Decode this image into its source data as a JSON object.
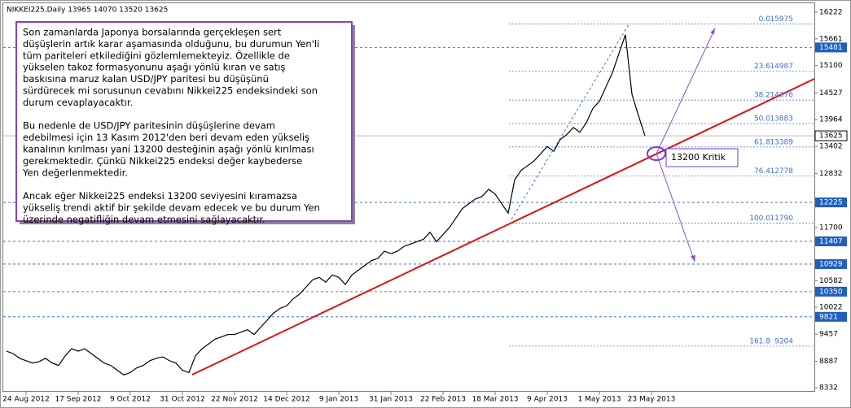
{
  "chart_data": {
    "type": "line",
    "title": "NIKKEI225,Daily  13965 14070 13520 13625",
    "color": "#000000",
    "categories": [
      null,
      null,
      null,
      "24 Aug 2012",
      null,
      null,
      null,
      null,
      null,
      null,
      null,
      "17 Sep 2012",
      null,
      null,
      null,
      null,
      null,
      null,
      null,
      "9 Oct 2012",
      null,
      null,
      null,
      null,
      null,
      null,
      null,
      "31 Oct 2012",
      null,
      null,
      null,
      null,
      null,
      null,
      null,
      "22 Nov 2012",
      null,
      null,
      null,
      null,
      null,
      null,
      null,
      "14 Dec 2012",
      null,
      null,
      null,
      null,
      null,
      null,
      null,
      "9 Jan 2013",
      null,
      null,
      null,
      null,
      null,
      null,
      null,
      "31 Jan 2013",
      null,
      null,
      null,
      null,
      null,
      null,
      null,
      "22 Feb 2013",
      null,
      null,
      null,
      null,
      null,
      null,
      null,
      "18 Mar 2013",
      null,
      null,
      null,
      null,
      null,
      null,
      null,
      "9 Apr 2013",
      null,
      null,
      null,
      null,
      null,
      null,
      null,
      "1 May 2013",
      null,
      null,
      null,
      null,
      null,
      null,
      null,
      "23 May 2013"
    ],
    "values": [
      9100,
      9050,
      8950,
      8900,
      8850,
      8880,
      8950,
      8850,
      8800,
      9000,
      9150,
      9100,
      9150,
      9050,
      8950,
      8850,
      8800,
      8700,
      8600,
      8650,
      8750,
      8800,
      8900,
      8950,
      8980,
      8900,
      8850,
      8700,
      8650,
      9000,
      9150,
      9250,
      9350,
      9400,
      9450,
      9450,
      9500,
      9550,
      9450,
      9600,
      9750,
      9900,
      10000,
      10050,
      10200,
      10300,
      10450,
      10600,
      10650,
      10550,
      10700,
      10650,
      10500,
      10700,
      10800,
      10900,
      11000,
      11050,
      11200,
      11150,
      11200,
      11300,
      11350,
      11400,
      11450,
      11600,
      11400,
      11550,
      11700,
      11900,
      12100,
      12200,
      12300,
      12350,
      12500,
      12400,
      12200,
      12000,
      12700,
      12900,
      13000,
      13100,
      13250,
      13400,
      13300,
      13550,
      13650,
      13800,
      13700,
      13900,
      14200,
      14350,
      14650,
      14950,
      15350,
      15750,
      14500,
      14050,
      13625,
      null
    ],
    "ylim": [
      8247,
      16393
    ],
    "yticks": [
      16222,
      15661,
      15100,
      14527,
      13964,
      13402,
      12832,
      11700,
      10582,
      10022,
      9457,
      8887,
      8332
    ],
    "levels": [
      {
        "price": 15481,
        "color": "#1f5fbf"
      },
      {
        "price": 12225,
        "color": "#1f5fbf"
      },
      {
        "price": 11407,
        "color": "#1f5fbf"
      },
      {
        "price": 10929,
        "color": "#1f5fbf"
      },
      {
        "price": 10350,
        "color": "#1f5fbf"
      },
      {
        "price": 9821,
        "color": "#1f5fbf"
      }
    ],
    "current_price": 13625,
    "fib_levels": [
      {
        "level": "0.0",
        "price": 15975
      },
      {
        "level": "23.6",
        "price": 14987
      },
      {
        "level": "38.2",
        "price": 14376
      },
      {
        "level": "50.0",
        "price": 13883
      },
      {
        "level": "61.8",
        "price": 13389
      },
      {
        "level": "76.4",
        "price": 12778
      },
      {
        "level": "100.0",
        "price": 11790
      },
      {
        "level": "161.8",
        "price": 9204
      }
    ],
    "callout": "13200 Kritik",
    "note": [
      [
        "Son zamanlarda Japonya borsalarında gerçekleşen sert",
        "düşüşlerin artık karar aşamasında olduğunu, bu durumun Yen'li",
        "tüm pariteleri etkilediğini gözlemlemekteyiz. Özellikle de",
        "yükselen takoz formasyonunu aşağı yönlü kıran ve satış",
        "baskısına maruz kalan USD/JPY paritesi bu düşüşünü",
        "sürdürecek mi sorusunun cevabını Nikkei225 endeksindeki son",
        "durum cevaplayacaktır."
      ],
      [
        "Bu nedenle de USD/JPY paritesinin düşüşlerine devam",
        "edebilmesi için 13 Kasım 2012'den beri devam eden yükseliş",
        "kanalının kırılması yani 13200 desteğinin aşağı yönlü kırılması",
        "gerekmektedir. Çünkü Nikkei225 endeksi değer kaybederse",
        "Yen değerlenmektedir."
      ],
      [
        "Ancak eğer Nikkei225 endeksi 13200 seviyesini kıramazsa",
        "yükseliş trendi aktif bir şekilde devam edecek ve bu durum Yen",
        "üzerinde negatifliğin devam etmesini sağlayacaktır."
      ]
    ]
  }
}
